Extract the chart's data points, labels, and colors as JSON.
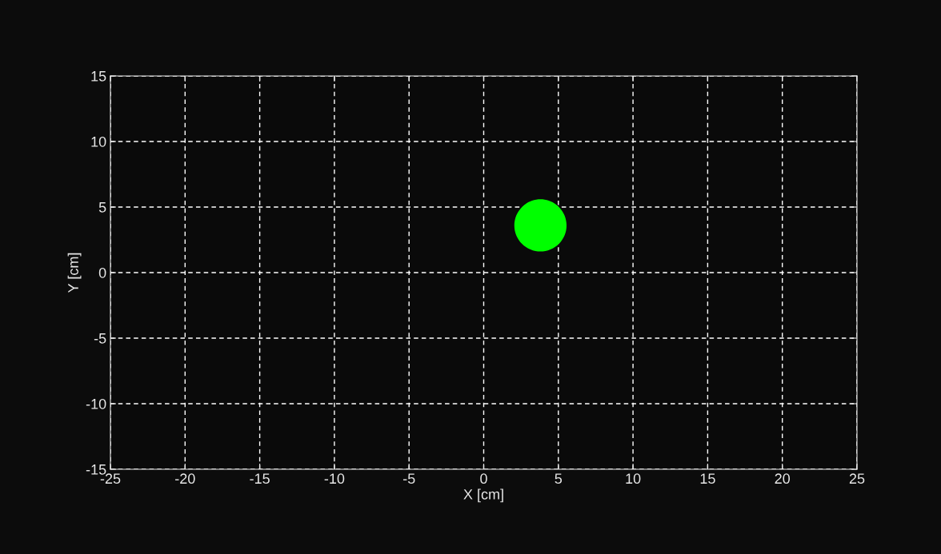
{
  "chart_data": {
    "type": "scatter",
    "xlabel": "X [cm]",
    "ylabel": "Y [cm]",
    "x": [
      3.8
    ],
    "values": [
      3.6
    ],
    "color": "#00ff00",
    "marker": "circle",
    "xlim": [
      -25,
      25
    ],
    "ylim": [
      -15,
      15
    ],
    "xticks": [
      -25,
      -20,
      -15,
      -10,
      -5,
      0,
      5,
      10,
      15,
      20,
      25
    ],
    "yticks": [
      -15,
      -10,
      -5,
      0,
      5,
      10,
      15
    ],
    "grid": true
  }
}
